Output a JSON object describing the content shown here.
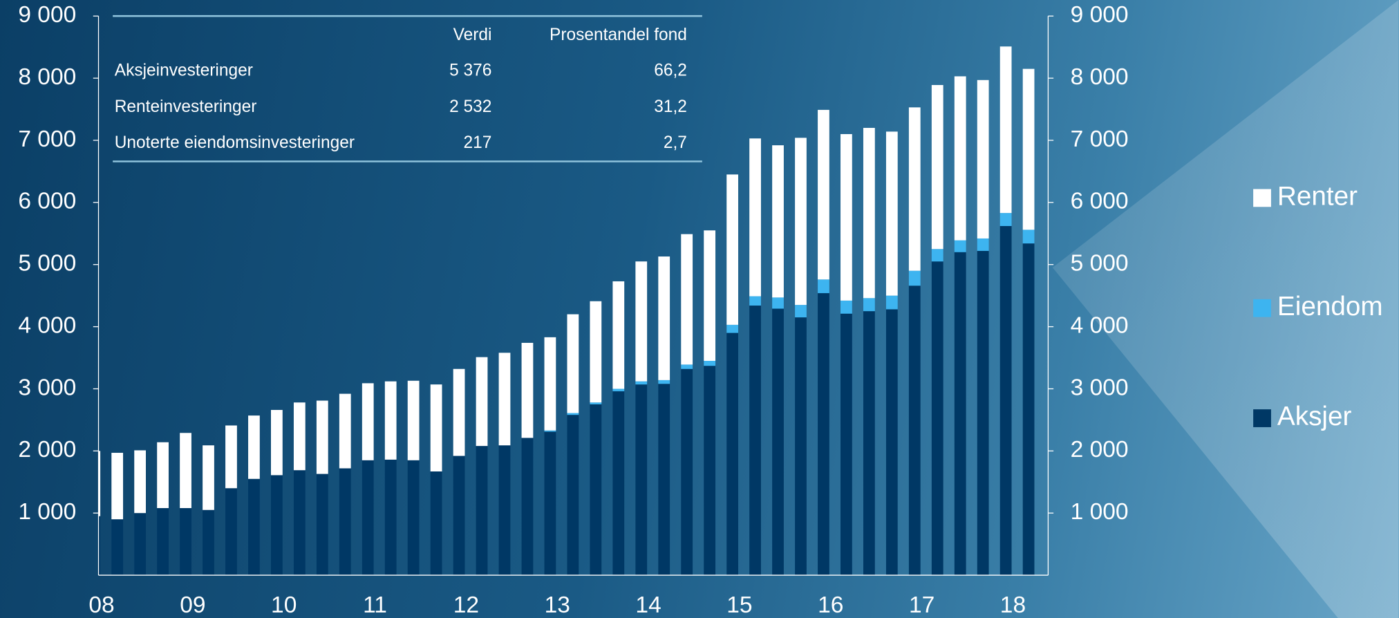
{
  "chart_data": {
    "type": "stacked_bar",
    "categories": [
      "08",
      null,
      null,
      null,
      "09",
      null,
      null,
      null,
      "10",
      null,
      null,
      null,
      "11",
      null,
      null,
      null,
      "12",
      null,
      null,
      null,
      "13",
      null,
      null,
      null,
      "14",
      null,
      null,
      null,
      "15",
      null,
      null,
      null,
      "16",
      null,
      null,
      null,
      "17",
      null,
      null,
      null,
      "18",
      null
    ],
    "series": [
      {
        "name": "Aksjer",
        "color": "#003865",
        "values": [
          950,
          900,
          1000,
          1080,
          1080,
          1050,
          1400,
          1550,
          1610,
          1690,
          1630,
          1720,
          1850,
          1860,
          1850,
          1670,
          1920,
          2080,
          2090,
          2210,
          2310,
          2580,
          2750,
          2960,
          3070,
          3080,
          3320,
          3370,
          3900,
          4340,
          4290,
          4150,
          4540,
          4210,
          4250,
          4280,
          4660,
          5050,
          5200,
          5220,
          5620,
          5340
        ]
      },
      {
        "name": "Eiendom",
        "color": "#3db4f0",
        "values": [
          0,
          0,
          0,
          0,
          0,
          0,
          0,
          0,
          0,
          0,
          0,
          0,
          0,
          0,
          0,
          0,
          0,
          0,
          0,
          0,
          20,
          30,
          30,
          40,
          50,
          60,
          70,
          80,
          130,
          150,
          180,
          200,
          220,
          210,
          210,
          220,
          240,
          200,
          190,
          200,
          210,
          220
        ]
      },
      {
        "name": "Renter",
        "color": "#ffffff",
        "values": [
          1050,
          1070,
          1010,
          1060,
          1210,
          1040,
          1010,
          1020,
          1050,
          1090,
          1180,
          1200,
          1240,
          1260,
          1280,
          1400,
          1400,
          1430,
          1490,
          1530,
          1500,
          1590,
          1630,
          1730,
          1930,
          1990,
          2100,
          2100,
          2420,
          2540,
          2450,
          2690,
          2730,
          2680,
          2740,
          2640,
          2630,
          2640,
          2640,
          2550,
          2680,
          2590
        ]
      }
    ],
    "ylim": [
      0,
      9000
    ],
    "yticks": [
      {
        "value": 1000,
        "label": "1 000"
      },
      {
        "value": 2000,
        "label": "2 000"
      },
      {
        "value": 3000,
        "label": "3 000"
      },
      {
        "value": 4000,
        "label": "4 000"
      },
      {
        "value": 5000,
        "label": "5 000"
      },
      {
        "value": 6000,
        "label": "6 000"
      },
      {
        "value": 7000,
        "label": "7 000"
      },
      {
        "value": 8000,
        "label": "8 000"
      },
      {
        "value": 9000,
        "label": "9 000"
      }
    ],
    "y2lim": [
      0,
      9000
    ],
    "y2ticks": [
      {
        "value": 1000,
        "label": "1 000"
      },
      {
        "value": 2000,
        "label": "2 000"
      },
      {
        "value": 3000,
        "label": "3 000"
      },
      {
        "value": 4000,
        "label": "4 000"
      },
      {
        "value": 5000,
        "label": "5 000"
      },
      {
        "value": 6000,
        "label": "6 000"
      },
      {
        "value": 7000,
        "label": "7 000"
      },
      {
        "value": 8000,
        "label": "8 000"
      },
      {
        "value": 9000,
        "label": "9 000"
      }
    ],
    "legend": "right",
    "table": {
      "header": [
        "Verdi",
        "Prosentandel fond"
      ],
      "rows": [
        [
          "Aksjeinvesteringer",
          "5 376",
          "66,2"
        ],
        [
          "Renteinvesteringer",
          "2 532",
          "31,2"
        ],
        [
          "Unoterte eiendomsinvesteringer",
          "217",
          "2,7"
        ]
      ]
    }
  }
}
